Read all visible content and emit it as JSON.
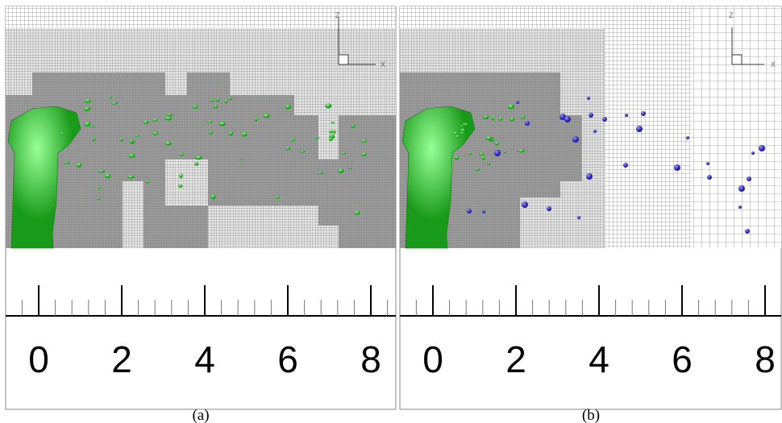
{
  "panels": [
    {
      "caption": "(a)",
      "ruler_labels": [
        "0",
        "2",
        "4",
        "6",
        "8"
      ],
      "axes": {
        "vertical": "Z",
        "horizontal": "X"
      }
    },
    {
      "caption": "(b)",
      "ruler_labels": [
        "0",
        "2",
        "4",
        "6",
        "8"
      ],
      "axes": {
        "vertical": "Z",
        "horizontal": "X"
      }
    }
  ]
}
